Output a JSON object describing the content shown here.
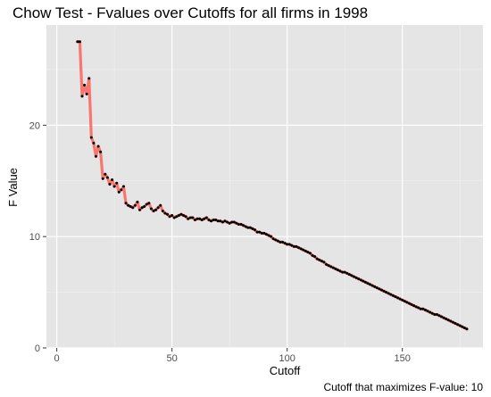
{
  "chart_data": {
    "type": "line",
    "title": "Chow Test - Fvalues over Cutoffs for all firms in 1998",
    "xlabel": "Cutoff",
    "ylabel": "F Value",
    "caption": "Cutoff that maximizes F-value: 10",
    "xlim": [
      -4.5,
      185
    ],
    "ylim": [
      0,
      29
    ],
    "xticks": [
      0,
      50,
      100,
      150
    ],
    "yticks": [
      0,
      10,
      20
    ],
    "xtick_labels": [
      "0",
      "50",
      "100",
      "150"
    ],
    "ytick_labels": [
      "0",
      "10",
      "20"
    ],
    "grid": true,
    "legend": "none",
    "line_color": "#f8766d",
    "point_color": "#000000",
    "panel_color": "#e5e5e5",
    "series": [
      {
        "x": [
          9,
          10,
          11,
          12,
          13,
          14,
          15,
          16,
          17,
          18,
          19,
          20,
          21,
          22,
          23,
          24,
          25,
          26,
          27,
          28,
          29,
          30,
          31,
          32,
          33,
          34,
          35,
          36,
          37,
          38,
          39,
          40,
          41,
          42,
          43,
          44,
          45,
          46,
          47,
          48,
          49,
          50,
          51,
          52,
          53,
          54,
          55,
          56,
          57,
          58,
          59,
          60,
          61,
          62,
          63,
          64,
          65,
          66,
          67,
          68,
          69,
          70,
          71,
          72,
          73,
          74,
          75,
          76,
          77,
          78,
          79,
          80,
          81,
          82,
          83,
          84,
          85,
          86,
          87,
          88,
          89,
          90,
          91,
          92,
          93,
          94,
          95,
          96,
          97,
          98,
          99,
          100,
          101,
          102,
          103,
          104,
          105,
          106,
          107,
          108,
          109,
          110,
          111,
          112,
          113,
          114,
          115,
          116,
          117,
          118,
          119,
          120,
          121,
          122,
          123,
          124,
          125,
          126,
          127,
          128,
          129,
          130,
          131,
          132,
          133,
          134,
          135,
          136,
          137,
          138,
          139,
          140,
          141,
          142,
          143,
          144,
          145,
          146,
          147,
          148,
          149,
          150,
          151,
          152,
          153,
          154,
          155,
          156,
          157,
          158,
          159,
          160,
          161,
          162,
          163,
          164,
          165,
          166,
          167,
          168,
          169,
          170,
          171,
          172,
          173,
          174,
          175,
          176,
          177,
          178
        ],
        "y": [
          27.5,
          27.5,
          22.6,
          23.6,
          22.8,
          24.2,
          18.9,
          18.4,
          17.2,
          18.1,
          17.6,
          15.2,
          15.6,
          15.3,
          14.7,
          15.1,
          14.5,
          14.8,
          14.0,
          14.2,
          14.5,
          13.0,
          12.8,
          12.7,
          12.6,
          12.8,
          13.1,
          12.4,
          12.6,
          12.7,
          12.9,
          13.0,
          12.5,
          12.3,
          12.4,
          12.6,
          12.8,
          12.3,
          12.1,
          12.0,
          11.8,
          11.9,
          11.7,
          11.8,
          11.9,
          12.0,
          11.9,
          11.8,
          11.6,
          11.7,
          11.7,
          11.5,
          11.6,
          11.6,
          11.5,
          11.6,
          11.7,
          11.5,
          11.4,
          11.5,
          11.5,
          11.4,
          11.4,
          11.3,
          11.4,
          11.3,
          11.2,
          11.3,
          11.3,
          11.2,
          11.1,
          11.1,
          11.0,
          10.9,
          10.8,
          10.8,
          10.7,
          10.6,
          10.4,
          10.4,
          10.3,
          10.3,
          10.2,
          10.1,
          10.0,
          9.8,
          9.7,
          9.6,
          9.5,
          9.5,
          9.4,
          9.3,
          9.3,
          9.2,
          9.1,
          9.1,
          9.0,
          8.9,
          8.8,
          8.7,
          8.6,
          8.5,
          8.3,
          8.2,
          8.0,
          7.9,
          7.8,
          7.7,
          7.5,
          7.4,
          7.3,
          7.2,
          7.1,
          7.0,
          6.9,
          6.8,
          6.8,
          6.7,
          6.6,
          6.5,
          6.4,
          6.3,
          6.2,
          6.1,
          6.0,
          5.9,
          5.8,
          5.7,
          5.6,
          5.5,
          5.4,
          5.3,
          5.2,
          5.1,
          5.0,
          4.9,
          4.8,
          4.7,
          4.6,
          4.5,
          4.4,
          4.3,
          4.2,
          4.1,
          4.0,
          3.9,
          3.8,
          3.7,
          3.6,
          3.5,
          3.5,
          3.4,
          3.3,
          3.2,
          3.1,
          3.0,
          3.0,
          2.9,
          2.8,
          2.7,
          2.6,
          2.5,
          2.4,
          2.3,
          2.2,
          2.1,
          2.0,
          1.9,
          1.8,
          1.7
        ]
      }
    ]
  }
}
